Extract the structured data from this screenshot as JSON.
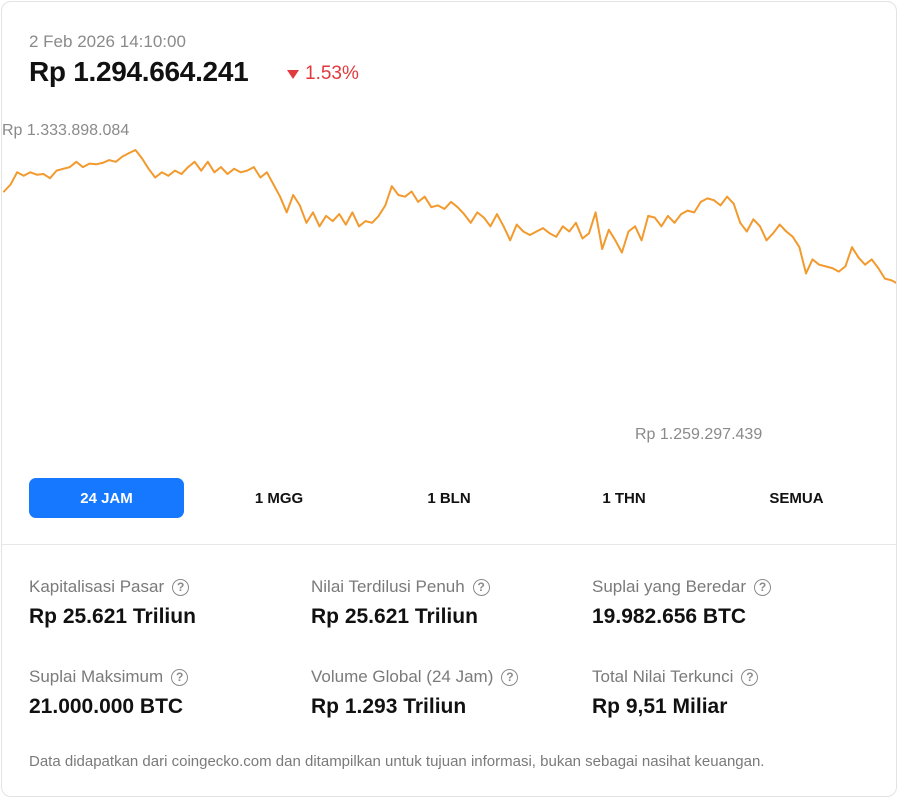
{
  "header": {
    "timestamp": "2 Feb 2026 14:10:00",
    "price": "Rp 1.294.664.241",
    "change": "1.53%",
    "change_direction": "down",
    "change_color": "#e0393e"
  },
  "chart_data": {
    "type": "line",
    "range": "24 JAM",
    "line_color": "#f29a2e",
    "max_label": "Rp 1.333.898.084",
    "min_label": "Rp 1.259.297.439",
    "max_value": 1333898084,
    "min_value": 1259297439,
    "grid": false,
    "values": [
      1322.0,
      1324.0,
      1327.5,
      1326.5,
      1327.5,
      1326.8,
      1327.0,
      1325.8,
      1328.0,
      1328.5,
      1329.0,
      1330.5,
      1329.0,
      1330.0,
      1329.8,
      1330.2,
      1331.0,
      1330.5,
      1332.0,
      1333.0,
      1333.9,
      1331.5,
      1328.5,
      1326.0,
      1327.5,
      1326.5,
      1328.0,
      1327.0,
      1329.0,
      1330.5,
      1328.0,
      1330.5,
      1327.5,
      1329.0,
      1327.0,
      1328.5,
      1327.5,
      1328.0,
      1329.0,
      1326.0,
      1327.5,
      1324.0,
      1320.5,
      1316.0,
      1321.0,
      1318.0,
      1313.0,
      1316.0,
      1312.0,
      1315.0,
      1313.5,
      1315.5,
      1312.5,
      1316.0,
      1312.0,
      1313.5,
      1313.0,
      1315.0,
      1318.0,
      1323.5,
      1321.0,
      1320.5,
      1322.0,
      1319.0,
      1320.5,
      1317.5,
      1318.0,
      1317.0,
      1319.0,
      1317.5,
      1315.5,
      1313.0,
      1316.0,
      1314.5,
      1312.0,
      1315.5,
      1312.0,
      1308.0,
      1312.5,
      1310.5,
      1309.5,
      1310.5,
      1311.5,
      1310.0,
      1309.0,
      1312.0,
      1310.5,
      1313.0,
      1308.5,
      1310.0,
      1316.0,
      1305.5,
      1311.0,
      1308.0,
      1304.5,
      1310.5,
      1312.0,
      1308.0,
      1315.0,
      1314.5,
      1312.0,
      1315.0,
      1313.0,
      1315.5,
      1316.5,
      1316.0,
      1319.0,
      1320.0,
      1319.5,
      1318.0,
      1320.5,
      1318.5,
      1313.0,
      1310.5,
      1314.0,
      1312.0,
      1308.0,
      1310.0,
      1312.5,
      1310.5,
      1309.0,
      1306.0,
      1298.5,
      1302.5,
      1301.0,
      1300.5,
      1300.0,
      1299.0,
      1300.5,
      1306.0,
      1303.0,
      1301.0,
      1302.5,
      1300.0,
      1297.0,
      1296.5,
      1295.5
    ],
    "highlight_values": [
      1294.66
    ]
  },
  "tabs": [
    {
      "label": "24 JAM",
      "active": true
    },
    {
      "label": "1 MGG",
      "active": false
    },
    {
      "label": "1 BLN",
      "active": false
    },
    {
      "label": "1 THN",
      "active": false
    },
    {
      "label": "SEMUA",
      "active": false
    }
  ],
  "stats": [
    {
      "label": "Kapitalisasi Pasar",
      "value": "Rp 25.621 Triliun"
    },
    {
      "label": "Nilai Terdilusi Penuh",
      "value": "Rp 25.621 Triliun"
    },
    {
      "label": "Suplai yang Beredar",
      "value": "19.982.656 BTC"
    },
    {
      "label": "Suplai Maksimum",
      "value": "21.000.000 BTC"
    },
    {
      "label": "Volume Global (24 Jam)",
      "value": "Rp 1.293 Triliun"
    },
    {
      "label": "Total Nilai Terkunci",
      "value": "Rp 9,51 Miliar"
    }
  ],
  "help_icon_glyph": "?",
  "footnote": "Data didapatkan dari coingecko.com dan ditampilkan untuk tujuan informasi, bukan sebagai nasihat keuangan.",
  "colors": {
    "accent": "#1677ff",
    "line": "#f29a2e",
    "negative": "#e0393e"
  }
}
